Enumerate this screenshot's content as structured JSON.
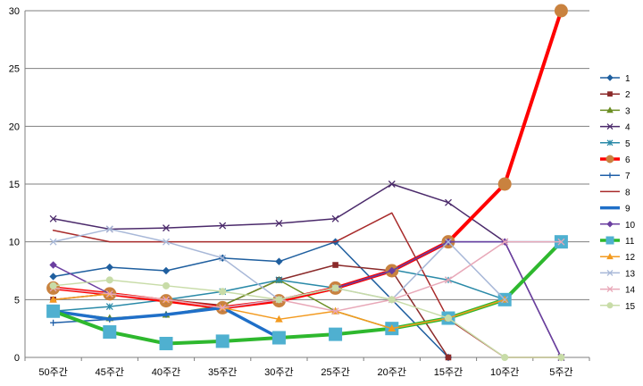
{
  "chart_data": {
    "type": "line",
    "categories": [
      "50주간",
      "45주간",
      "40주간",
      "35주간",
      "30주간",
      "25주간",
      "20주간",
      "15주간",
      "10주간",
      "5주간"
    ],
    "ylim": [
      0,
      30
    ],
    "yticks": [
      0,
      5,
      10,
      15,
      20,
      25,
      30
    ],
    "grid": "horizontal",
    "legend_position": "right",
    "series": [
      {
        "name": "1",
        "color": "#1f5f9f",
        "marker": "diamond",
        "width": 1.5,
        "values": [
          7,
          7.8,
          7.5,
          8.6,
          8.3,
          10,
          5,
          0,
          null,
          null
        ]
      },
      {
        "name": "2",
        "color": "#8b2a2a",
        "marker": "square",
        "width": 1.5,
        "values": [
          5,
          5.5,
          5,
          4.5,
          6.7,
          8,
          7.5,
          0,
          null,
          null
        ]
      },
      {
        "name": "3",
        "color": "#6b8e23",
        "marker": "triangle",
        "width": 1.5,
        "values": [
          4,
          3.4,
          3.7,
          4.5,
          6.7,
          4,
          2.5,
          3.4,
          5,
          10
        ]
      },
      {
        "name": "4",
        "color": "#4b2a6b",
        "marker": "x",
        "width": 1.5,
        "values": [
          12,
          11.1,
          11.2,
          11.4,
          11.6,
          12,
          15,
          13.4,
          10,
          0
        ]
      },
      {
        "name": "5",
        "color": "#2a8aa8",
        "marker": "star",
        "width": 1.5,
        "values": [
          4,
          4.4,
          5,
          5.7,
          6.7,
          6,
          7.6,
          6.7,
          5,
          10
        ]
      },
      {
        "name": "6",
        "color": "#ff0000",
        "marker": "circle",
        "markerColor": "#c9823f",
        "width": 4,
        "values": [
          6,
          5.5,
          4.9,
          4.3,
          4.9,
          6,
          7.5,
          10,
          15,
          30
        ]
      },
      {
        "name": "7",
        "color": "#1f5fa8",
        "marker": "plus",
        "width": 1.5,
        "values": [
          3,
          3.3,
          3.7,
          4.3,
          5,
          6,
          7.5,
          10,
          10,
          10
        ]
      },
      {
        "name": "8",
        "color": "#a82a2a",
        "marker": "none",
        "width": 1.5,
        "values": [
          11,
          10,
          10,
          10,
          10,
          10,
          12.5,
          3.3,
          0,
          0
        ]
      },
      {
        "name": "9",
        "color": "#1f6fc8",
        "marker": "none",
        "width": 3.5,
        "values": [
          4,
          3.3,
          3.7,
          4.3,
          1.7,
          null,
          null,
          null,
          null,
          null
        ]
      },
      {
        "name": "10",
        "color": "#6b3fa0",
        "marker": "diamond",
        "width": 1.5,
        "values": [
          8,
          5.5,
          5,
          4.3,
          5,
          6,
          7.5,
          10,
          10,
          0
        ]
      },
      {
        "name": "11",
        "color": "#2eb82e",
        "marker": "bigsquare",
        "markerColor": "#4fb0d0",
        "width": 4,
        "values": [
          4,
          2.2,
          1.2,
          1.4,
          1.7,
          2,
          2.5,
          3.4,
          5,
          10
        ]
      },
      {
        "name": "12",
        "color": "#f39a1f",
        "marker": "triangle",
        "width": 1.5,
        "values": [
          5,
          5.5,
          5,
          4.3,
          3.3,
          4,
          2.5,
          3.4,
          5,
          null
        ]
      },
      {
        "name": "13",
        "color": "#a8b8d8",
        "marker": "x",
        "width": 1.5,
        "values": [
          10,
          11.1,
          10,
          8.6,
          5,
          6,
          5,
          10,
          5,
          null
        ]
      },
      {
        "name": "14",
        "color": "#e8a8b8",
        "marker": "x",
        "width": 1.5,
        "values": [
          6,
          5.5,
          5,
          4.3,
          5,
          4,
          5,
          6.7,
          10,
          10
        ]
      },
      {
        "name": "15",
        "color": "#c8dca8",
        "marker": "circle",
        "width": 1.5,
        "values": [
          6.2,
          6.7,
          6.2,
          5.7,
          5,
          6,
          5,
          3.4,
          0,
          0
        ]
      }
    ]
  }
}
